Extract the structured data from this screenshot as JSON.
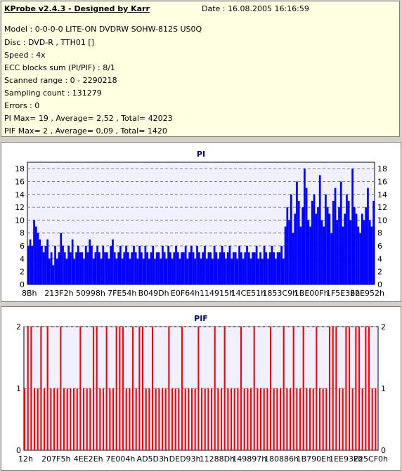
{
  "app": {
    "title": "KProbe v2.4.3 - Designed by Karr",
    "date": "Date : 16.08.2005 16:16:59"
  },
  "info_lines": [
    "Model : 0-0-0-0 LITE-ON DVDRW SOHW-812S  US0Q",
    "Disc : DVD-R , TTH01 []",
    "Speed : 4x",
    "ECC blocks sum (PI/PIF) : 8/1",
    "Scanned range : 0 - 2290218",
    "Sampling count : 131279",
    "Errors : 0",
    "PI Max= 19 , Average= 2,52 , Total= 42023",
    "PIF Max= 2 , Average= 0,09 , Total= 1420"
  ],
  "colors": {
    "pi_bar": "#0000ff",
    "pif_bar": "#ff0000",
    "plot_bg": "#f0f0ff",
    "grid": "#808080"
  },
  "chart_data": [
    {
      "type": "bar",
      "title": "PI",
      "xlabel": "",
      "ylabel": "",
      "ylim": [
        0,
        19
      ],
      "yticks": [
        0,
        2,
        4,
        6,
        8,
        10,
        12,
        14,
        16,
        18
      ],
      "x_tick_labels": [
        "8Bh",
        "213F2h",
        "50998h",
        "7FE54h",
        "B049Dh",
        "E0F64h",
        "114915h",
        "14CE51h",
        "1853C9h",
        "1BE00Fh",
        "1F5E36h",
        "22E952h"
      ],
      "grid": "horizontal dashed",
      "series": [
        {
          "values": [
            6,
            7,
            6,
            10,
            9,
            8,
            7,
            6,
            5,
            6,
            7,
            4,
            5,
            3,
            6,
            4,
            5,
            8,
            6,
            5,
            4,
            6,
            5,
            7,
            4,
            5,
            6,
            5,
            5,
            4,
            6,
            5,
            7,
            6,
            4,
            5,
            6,
            5,
            4,
            6,
            5,
            5,
            4,
            6,
            7,
            5,
            4,
            5,
            6,
            4,
            5,
            6,
            5,
            4,
            5,
            6,
            5,
            4,
            6,
            5,
            4,
            6,
            5,
            4,
            5,
            6,
            4,
            5,
            5,
            4,
            6,
            5,
            4,
            6,
            5,
            4,
            5,
            6,
            5,
            4,
            5,
            5,
            6,
            4,
            5,
            6,
            5,
            4,
            6,
            5,
            4,
            5,
            6,
            4,
            5,
            5,
            4,
            6,
            5,
            4,
            5,
            6,
            5,
            4,
            5,
            6,
            4,
            5,
            5,
            4,
            6,
            5,
            4,
            5,
            6,
            5,
            4,
            5,
            5,
            6,
            4,
            5,
            4,
            6,
            5,
            4,
            5,
            6,
            5,
            4,
            5,
            5,
            6,
            4,
            9,
            12,
            10,
            14,
            8,
            11,
            16,
            13,
            9,
            12,
            18,
            15,
            10,
            9,
            13,
            14,
            11,
            12,
            17,
            10,
            9,
            14,
            12,
            11,
            8,
            13,
            15,
            10,
            12,
            16,
            9,
            11,
            14,
            13,
            10,
            18,
            12,
            11,
            9,
            8,
            11,
            10,
            12,
            15,
            10,
            9,
            13
          ]
        }
      ]
    },
    {
      "type": "bar",
      "title": "PIF",
      "xlabel": "",
      "ylabel": "",
      "ylim": [
        0,
        2
      ],
      "yticks": [
        0,
        1,
        2
      ],
      "x_tick_labels": [
        "12h",
        "207F5h",
        "4EE2Eh",
        "7E004h",
        "AD5D3h",
        "DED93h",
        "11288Dh",
        "149897h",
        "180886h",
        "1B790Eh",
        "1EE93Fh",
        "225CF0h"
      ],
      "grid": "horizontal dashed",
      "series": [
        {
          "values": [
            1,
            2,
            2,
            1,
            1,
            2,
            1,
            2,
            1,
            1,
            1,
            2,
            1,
            1,
            1,
            1,
            1,
            2,
            1,
            1,
            1,
            2,
            2,
            1,
            1,
            2,
            1,
            1,
            2,
            2,
            2,
            1,
            1,
            2,
            1,
            2,
            2,
            1,
            1,
            2,
            1,
            1,
            1,
            1,
            2,
            1,
            1,
            1,
            2,
            1,
            1,
            1,
            1,
            2,
            1,
            1,
            1,
            1,
            2,
            1,
            1,
            2,
            1,
            1,
            1,
            1,
            2,
            1,
            1,
            1,
            2,
            1,
            1,
            1,
            1,
            2,
            1,
            1,
            1,
            2,
            1,
            1,
            2,
            1,
            1,
            2,
            1,
            1,
            1,
            2,
            1,
            1,
            1,
            2,
            2,
            2,
            1,
            1,
            2,
            2,
            1,
            2,
            2,
            1,
            2,
            2,
            1,
            1
          ]
        }
      ]
    }
  ]
}
